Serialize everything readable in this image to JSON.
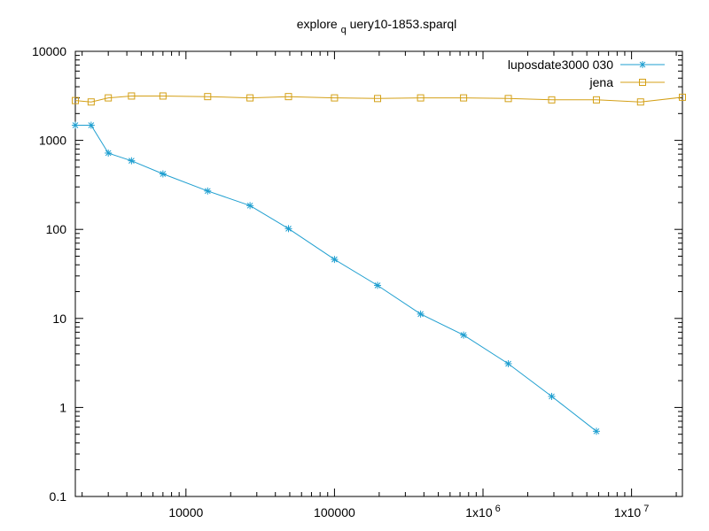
{
  "chart_data": {
    "type": "line",
    "title_main": "explore",
    "title_sub": "q",
    "title_rest": "uery10-1853.sparql",
    "xscale": "log",
    "yscale": "log",
    "xlim": [
      1800,
      22000000
    ],
    "ylim": [
      0.1,
      10000
    ],
    "grid": false,
    "legend_position": "top-right",
    "x_ticks": [
      {
        "value": 10000,
        "label": "10000"
      },
      {
        "value": 100000,
        "label": "100000"
      },
      {
        "value": 1000000,
        "label": "1x10",
        "sup": "6"
      },
      {
        "value": 10000000,
        "label": "1x10",
        "sup": "7"
      }
    ],
    "y_ticks": [
      {
        "value": 0.1,
        "label": "0.1"
      },
      {
        "value": 1,
        "label": "1"
      },
      {
        "value": 10,
        "label": "10"
      },
      {
        "value": 100,
        "label": "100"
      },
      {
        "value": 1000,
        "label": "1000"
      },
      {
        "value": 10000,
        "label": "10000"
      }
    ],
    "series": [
      {
        "name": "luposdate3000 030",
        "color": "#1f9fd0",
        "marker": "star",
        "x": [
          1800,
          2300,
          3000,
          4300,
          7000,
          14000,
          27000,
          49000,
          100000,
          195000,
          380000,
          740000,
          1480000,
          2900000,
          5800000
        ],
        "y": [
          1480,
          1480,
          720,
          590,
          420,
          270,
          185,
          102,
          46,
          23.5,
          11.2,
          6.5,
          3.1,
          1.33,
          0.54
        ]
      },
      {
        "name": "jena",
        "color": "#d4a017",
        "marker": "square",
        "x": [
          1800,
          2300,
          3000,
          4300,
          7000,
          14000,
          27000,
          49000,
          100000,
          195000,
          380000,
          740000,
          1480000,
          2900000,
          5800000,
          11500000,
          22000000
        ],
        "y": [
          2800,
          2700,
          3000,
          3150,
          3150,
          3100,
          3000,
          3100,
          3000,
          2950,
          3000,
          3000,
          2950,
          2850,
          2850,
          2700,
          3050
        ]
      }
    ]
  }
}
